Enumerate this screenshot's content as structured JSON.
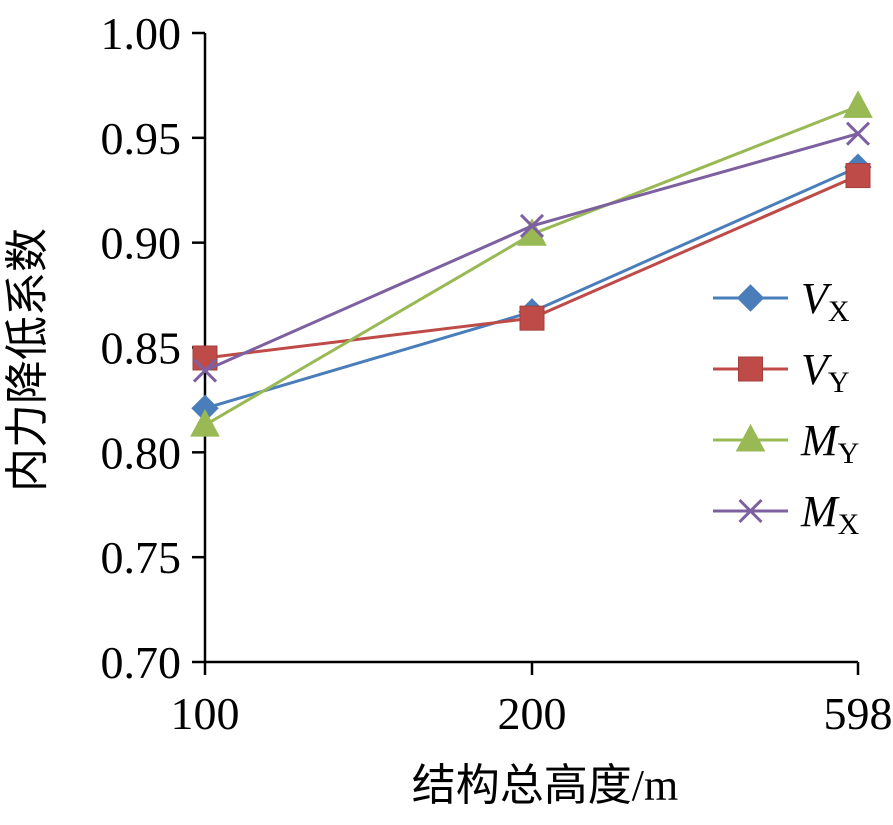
{
  "chart_data": {
    "type": "line",
    "title": "",
    "xlabel": "结构总高度/m",
    "ylabel": "内力降低系数",
    "categories": [
      "100",
      "200",
      "598"
    ],
    "ylim": [
      0.7,
      1.0
    ],
    "yticks": [
      "0.70",
      "0.75",
      "0.80",
      "0.85",
      "0.90",
      "0.95",
      "1.00"
    ],
    "grid": false,
    "legend_position": "right",
    "series": [
      {
        "name": "VX",
        "label_main": "V",
        "label_sub": "X",
        "values": [
          0.821,
          0.867,
          0.936
        ],
        "color": "#4a7ebb",
        "marker": "diamond"
      },
      {
        "name": "VY",
        "label_main": "V",
        "label_sub": "Y",
        "values": [
          0.845,
          0.864,
          0.932
        ],
        "color": "#be4b48",
        "marker": "square"
      },
      {
        "name": "MY",
        "label_main": "M",
        "label_sub": "Y",
        "values": [
          0.813,
          0.904,
          0.965
        ],
        "color": "#98b954",
        "marker": "triangle"
      },
      {
        "name": "MX",
        "label_main": "M",
        "label_sub": "X",
        "values": [
          0.839,
          0.908,
          0.952
        ],
        "color": "#7d60a0",
        "marker": "x"
      }
    ]
  }
}
